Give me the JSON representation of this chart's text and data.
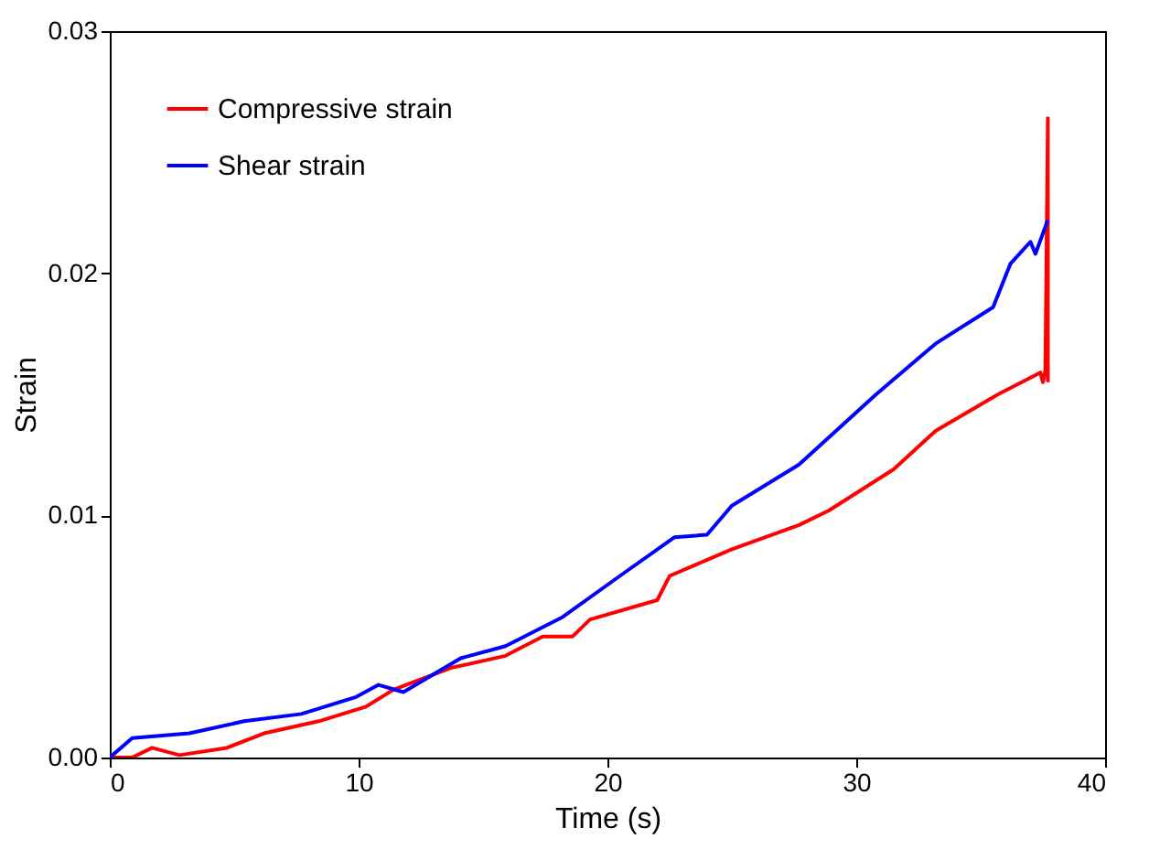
{
  "chart_data": {
    "type": "line",
    "xlabel": "Time (s)",
    "ylabel": "Strain",
    "xlim": [
      0,
      40
    ],
    "ylim": [
      0,
      0.03
    ],
    "xticks": [
      0,
      10,
      20,
      30,
      40
    ],
    "yticks": [
      {
        "value": 0,
        "label": "0.00"
      },
      {
        "value": 0.01,
        "label": "0.01"
      },
      {
        "value": 0.02,
        "label": "0.02"
      },
      {
        "value": 0.03,
        "label": "0.03"
      }
    ],
    "grid": false,
    "legend": "top left",
    "marker": "none",
    "line_style": "solid",
    "series": [
      {
        "name": "Compressive strain",
        "color": "#ff0000",
        "x": [
          0,
          0.9,
          1.7,
          2.8,
          4.7,
          6.2,
          8.4,
          10.3,
          11.4,
          13.7,
          15.9,
          17.4,
          18.6,
          19.3,
          22,
          22.5,
          25,
          27.7,
          28.9,
          31.5,
          33.2,
          35.7,
          37.4,
          37.5,
          37.6,
          37.7,
          37.7
        ],
        "values": [
          0,
          0,
          0.0004,
          0.0001,
          0.0004,
          0.001,
          0.0015,
          0.0021,
          0.0028,
          0.0037,
          0.0042,
          0.005,
          0.005,
          0.0057,
          0.0065,
          0.0075,
          0.0086,
          0.0096,
          0.0102,
          0.0119,
          0.0135,
          0.015,
          0.0159,
          0.0155,
          0.016,
          0.0264,
          0.0155
        ]
      },
      {
        "name": "Shear strain",
        "color": "#0000ff",
        "x": [
          0,
          0.9,
          3.2,
          5.4,
          7.7,
          9.9,
          10.8,
          11.8,
          14.1,
          15.9,
          18.2,
          20.5,
          22.7,
          24,
          25,
          27.7,
          30.8,
          33.2,
          35.5,
          36.2,
          37,
          37.2,
          37.7
        ],
        "values": [
          0,
          0.0008,
          0.001,
          0.0015,
          0.0018,
          0.0025,
          0.003,
          0.0027,
          0.0041,
          0.0046,
          0.0058,
          0.0075,
          0.0091,
          0.0092,
          0.0104,
          0.0121,
          0.015,
          0.0171,
          0.0186,
          0.0204,
          0.0213,
          0.0208,
          0.0222
        ]
      }
    ]
  }
}
